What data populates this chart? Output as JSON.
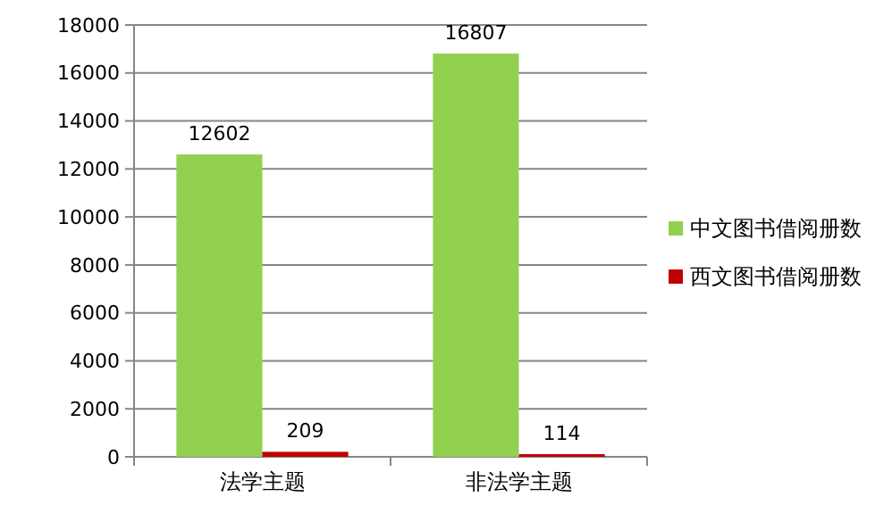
{
  "chart_data": {
    "type": "bar",
    "categories": [
      "法学主题",
      "非法学主题"
    ],
    "series": [
      {
        "name": "中文图书借阅册数",
        "color": "#92d050",
        "values": [
          12602,
          16807
        ]
      },
      {
        "name": "西文图书借阅册数",
        "color": "#c00000",
        "values": [
          209,
          114
        ]
      }
    ],
    "ylim": [
      0,
      18000
    ],
    "yticks": [
      0,
      2000,
      4000,
      6000,
      8000,
      10000,
      12000,
      14000,
      16000,
      18000
    ],
    "grid": "y",
    "legend": "right",
    "data_labels": true
  }
}
